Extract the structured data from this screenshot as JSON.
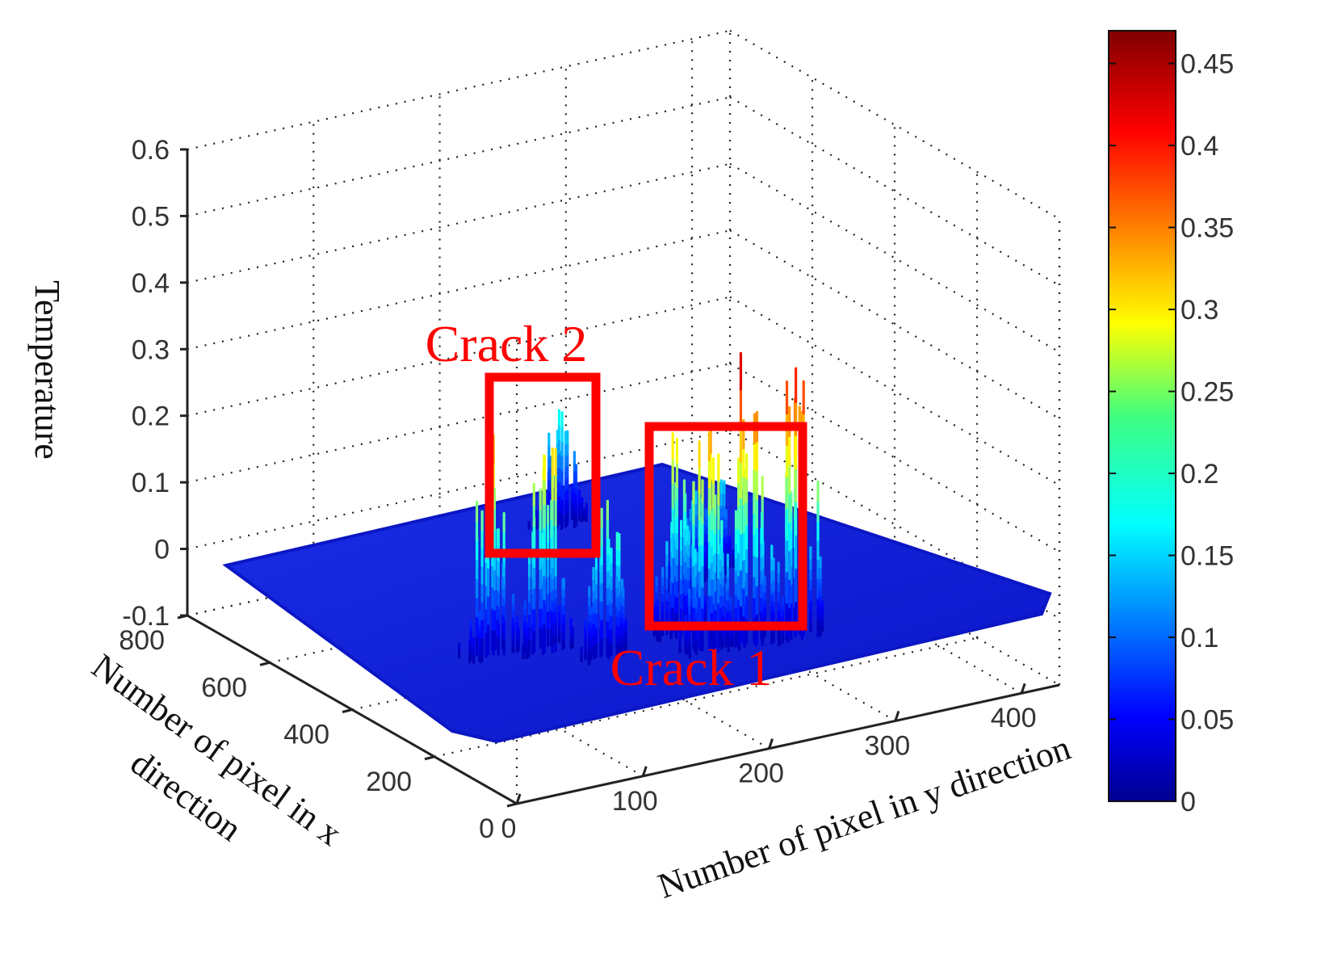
{
  "chart_data": {
    "type": "surface",
    "title": "",
    "zlabel": "Temperature",
    "xlabel": "Number of pixel in x direction",
    "xlabel_lines": [
      "Number of pixel in x",
      "direction"
    ],
    "ylabel": "Number of pixel in y direction",
    "z_ticks": [
      "0.6",
      "0.5",
      "0.4",
      "0.3",
      "0.2",
      "0.1",
      "0",
      "-0.1"
    ],
    "x_ticks": [
      "800",
      "600",
      "400",
      "200",
      "0"
    ],
    "y_ticks": [
      "0",
      "100",
      "200",
      "300",
      "400"
    ],
    "zlim": [
      -0.1,
      0.6
    ],
    "xlim": [
      0,
      800
    ],
    "ylim": [
      0,
      430
    ],
    "grid": true,
    "colormap": "jet",
    "colorbar": {
      "range": [
        0,
        0.47
      ],
      "ticks": [
        "0.45",
        "0.4",
        "0.35",
        "0.3",
        "0.25",
        "0.2",
        "0.15",
        "0.1",
        "0.05",
        "0"
      ],
      "placement": "right"
    },
    "baseline_temperature": 0.02,
    "peaks": [
      {
        "x": 80,
        "y": 250,
        "temperature": 0.47
      },
      {
        "x": 90,
        "y": 215,
        "temperature": 0.48
      },
      {
        "x": 100,
        "y": 185,
        "temperature": 0.41
      },
      {
        "x": 170,
        "y": 185,
        "temperature": 0.34
      },
      {
        "x": 210,
        "y": 90,
        "temperature": 0.38
      },
      {
        "x": 230,
        "y": 55,
        "temperature": 0.36
      },
      {
        "x": 150,
        "y": 120,
        "temperature": 0.3
      },
      {
        "x": 300,
        "y": 240,
        "temperature": 0.19
      },
      {
        "x": 330,
        "y": 265,
        "temperature": 0.17
      },
      {
        "x": 580,
        "y": 225,
        "temperature": 0.2
      }
    ],
    "annotations": [
      {
        "label": "Crack 1",
        "color": "#ff0000",
        "x_range": [
          250,
          430
        ],
        "y_range": [
          200,
          280
        ]
      },
      {
        "label": "Crack 2",
        "color": "#ff0000",
        "x_range": [
          520,
          650
        ],
        "y_range": [
          200,
          250
        ]
      }
    ]
  }
}
